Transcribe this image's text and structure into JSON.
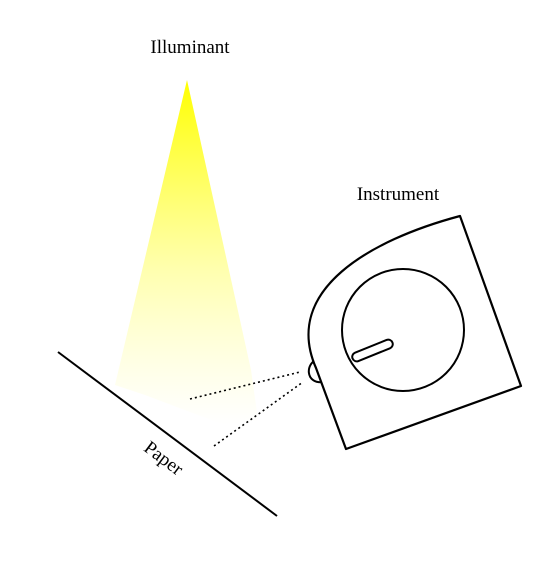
{
  "diagram": {
    "labels": {
      "illuminant": "Illuminant",
      "instrument": "Instrument",
      "paper": "Paper"
    },
    "colors": {
      "light_top": "#ffff00",
      "light_bottom": "#ffffff",
      "stroke": "#000000",
      "background": "#ffffff"
    }
  }
}
